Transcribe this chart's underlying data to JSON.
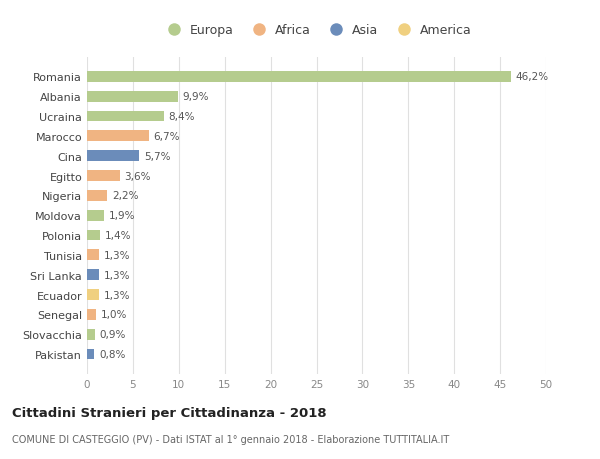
{
  "countries": [
    "Romania",
    "Albania",
    "Ucraina",
    "Marocco",
    "Cina",
    "Egitto",
    "Nigeria",
    "Moldova",
    "Polonia",
    "Tunisia",
    "Sri Lanka",
    "Ecuador",
    "Senegal",
    "Slovacchia",
    "Pakistan"
  ],
  "values": [
    46.2,
    9.9,
    8.4,
    6.7,
    5.7,
    3.6,
    2.2,
    1.9,
    1.4,
    1.3,
    1.3,
    1.3,
    1.0,
    0.9,
    0.8
  ],
  "labels": [
    "46,2%",
    "9,9%",
    "8,4%",
    "6,7%",
    "5,7%",
    "3,6%",
    "2,2%",
    "1,9%",
    "1,4%",
    "1,3%",
    "1,3%",
    "1,3%",
    "1,0%",
    "0,9%",
    "0,8%"
  ],
  "continents": [
    "Europa",
    "Europa",
    "Europa",
    "Africa",
    "Asia",
    "Africa",
    "Africa",
    "Europa",
    "Europa",
    "Africa",
    "Asia",
    "America",
    "Africa",
    "Europa",
    "Asia"
  ],
  "colors": {
    "Europa": "#b5cc8e",
    "Africa": "#f0b482",
    "Asia": "#6b8cba",
    "America": "#f0d080"
  },
  "xlim": [
    0,
    50
  ],
  "xticks": [
    0,
    5,
    10,
    15,
    20,
    25,
    30,
    35,
    40,
    45,
    50
  ],
  "title": "Cittadini Stranieri per Cittadinanza - 2018",
  "subtitle": "COMUNE DI CASTEGGIO (PV) - Dati ISTAT al 1° gennaio 2018 - Elaborazione TUTTITALIA.IT",
  "background_color": "#ffffff",
  "grid_color": "#e0e0e0",
  "bar_height": 0.55
}
